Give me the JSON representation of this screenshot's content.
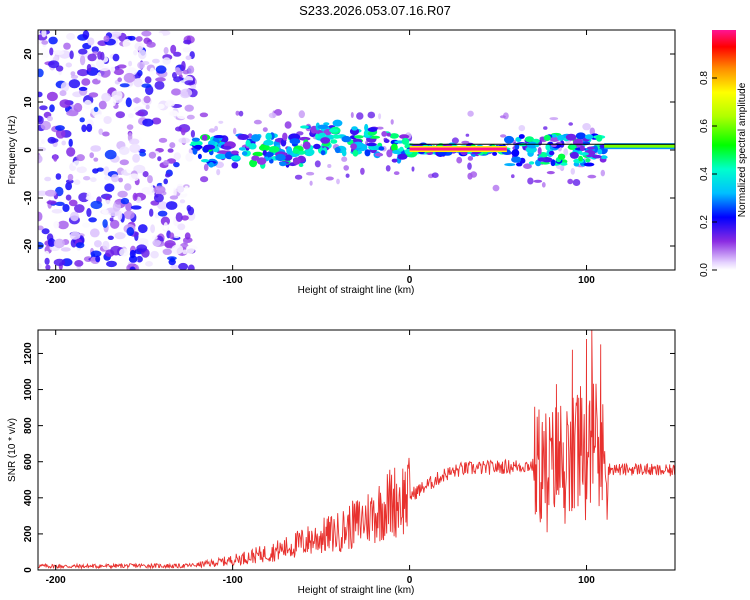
{
  "title": "S233.2026.053.07.16.R07",
  "chart_data": [
    {
      "type": "heatmap",
      "name": "spectrogram",
      "xlabel": "Height of straight line (km)",
      "ylabel": "Frequency (Hz)",
      "xlim": [
        -210,
        150
      ],
      "ylim": [
        -25,
        25
      ],
      "xticks": [
        -200,
        -100,
        0,
        100
      ],
      "yticks": [
        -20,
        -10,
        0,
        10,
        20
      ],
      "colorbar": {
        "label": "Normalized spectral amplitude",
        "range": [
          0,
          1
        ],
        "ticks": [
          0.0,
          0.2,
          0.4,
          0.6,
          0.8
        ],
        "tick_labels": [
          "0.0",
          "0.2",
          "0.4",
          "0.6",
          "0.8"
        ]
      },
      "regions": [
        {
          "description": "broadband noise",
          "x_range": [
            -210,
            -122
          ],
          "freq_range": [
            -25,
            25
          ],
          "amplitude": [
            0.0,
            0.25
          ]
        },
        {
          "description": "signal band",
          "x_range": [
            -122,
            110
          ],
          "freq_range": [
            -5,
            7
          ],
          "amplitude": [
            0.1,
            0.5
          ]
        },
        {
          "description": "strong carrier",
          "x_range": [
            0,
            55
          ],
          "freq_center": 0.2,
          "amplitude": 1.0
        },
        {
          "description": "carrier after occultation",
          "x_range": [
            110,
            150
          ],
          "freq_center": 0.8,
          "amplitude": 0.6
        }
      ]
    },
    {
      "type": "line",
      "name": "snr",
      "xlabel": "Height of straight line (km)",
      "ylabel": "SNR (10 * v/v)",
      "xlim": [
        -210,
        150
      ],
      "ylim": [
        0,
        1330
      ],
      "xticks": [
        -200,
        -100,
        0,
        100
      ],
      "yticks": [
        0,
        200,
        400,
        600,
        800,
        1000,
        1200
      ],
      "color": "#e8312e",
      "series": [
        {
          "name": "SNR",
          "x": [
            -210,
            -190,
            -170,
            -150,
            -130,
            -120,
            -110,
            -100,
            -90,
            -80,
            -70,
            -60,
            -50,
            -40,
            -30,
            -20,
            -10,
            0,
            10,
            20,
            30,
            40,
            50,
            60,
            70,
            80,
            85,
            90,
            95,
            100,
            105,
            110,
            115,
            120,
            130,
            140,
            150
          ],
          "y": [
            22,
            20,
            22,
            24,
            22,
            28,
            40,
            55,
            75,
            95,
            120,
            155,
            185,
            210,
            260,
            310,
            380,
            410,
            470,
            530,
            560,
            565,
            570,
            575,
            580,
            560,
            620,
            520,
            700,
            540,
            780,
            560,
            560,
            555,
            560,
            550,
            550
          ]
        }
      ],
      "spikes": [
        {
          "x": 75,
          "y": 820
        },
        {
          "x": 83,
          "y": 1030
        },
        {
          "x": 92,
          "y": 1220
        },
        {
          "x": 100,
          "y": 1280
        },
        {
          "x": 103,
          "y": 1330
        },
        {
          "x": 108,
          "y": 1250
        }
      ]
    }
  ]
}
